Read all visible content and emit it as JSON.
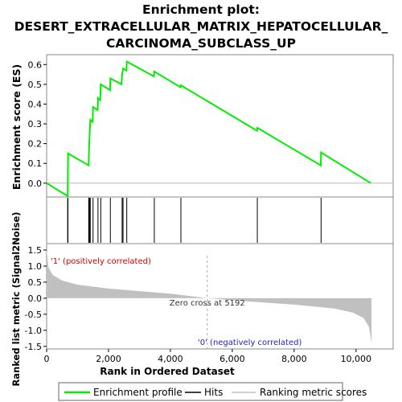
{
  "chart_data": {
    "type": "line",
    "title_lines": [
      "Enrichment plot:",
      "DESERT_EXTRACELLULAR_MATRIX_HEPATOCELLULAR_",
      "CARCINOMA_SUBCLASS_UP"
    ],
    "es_panel": {
      "ylabel": "Enrichment score (ES)",
      "ylim": [
        -0.07,
        0.65
      ],
      "yticks": [
        0.0,
        0.1,
        0.2,
        0.3,
        0.4,
        0.5,
        0.6
      ],
      "ytick_labels": [
        "0.0",
        "0.1",
        "0.2",
        "0.3",
        "0.4",
        "0.5",
        "0.6"
      ],
      "line_color": "#00ee00",
      "profile": [
        [
          0,
          0.0
        ],
        [
          680,
          -0.065
        ],
        [
          690,
          0.15
        ],
        [
          1360,
          0.09
        ],
        [
          1370,
          0.17
        ],
        [
          1390,
          0.25
        ],
        [
          1410,
          0.32
        ],
        [
          1490,
          0.31
        ],
        [
          1500,
          0.385
        ],
        [
          1650,
          0.37
        ],
        [
          1660,
          0.43
        ],
        [
          1730,
          0.42
        ],
        [
          1750,
          0.5
        ],
        [
          2050,
          0.47
        ],
        [
          2060,
          0.53
        ],
        [
          2420,
          0.5
        ],
        [
          2440,
          0.55
        ],
        [
          2470,
          0.58
        ],
        [
          2580,
          0.57
        ],
        [
          2590,
          0.615
        ],
        [
          3470,
          0.54
        ],
        [
          3480,
          0.565
        ],
        [
          4330,
          0.485
        ],
        [
          4340,
          0.495
        ],
        [
          6800,
          0.265
        ],
        [
          6810,
          0.28
        ],
        [
          8860,
          0.09
        ],
        [
          8870,
          0.155
        ],
        [
          10480,
          0.0
        ]
      ]
    },
    "hits": {
      "positions": [
        680,
        690,
        1360,
        1370,
        1390,
        1410,
        1500,
        1660,
        1750,
        2060,
        2440,
        2470,
        2590,
        3480,
        4340,
        6810,
        8870
      ]
    },
    "color_bar": {
      "label_pos": "'1' (positively correlated)",
      "label_neg": "'0' (negatively correlated)",
      "pos_color": "#ee0000",
      "neg_color": "#0000dd"
    },
    "metric_panel": {
      "ylabel": "Ranked list metric (Signal2Noise)",
      "ylim": [
        -1.58,
        1.7
      ],
      "yticks": [
        -1.5,
        -1.0,
        -0.5,
        0.0,
        0.5,
        1.0,
        1.5
      ],
      "ytick_labels": [
        "-1.5",
        "-1.0",
        "-0.5",
        "0.0",
        "0.5",
        "1.0",
        "1.5"
      ],
      "zero_cross_label": "Zero cross at 5192",
      "zero_cross": 5192,
      "n": 10500,
      "curve": [
        [
          0,
          1.55
        ],
        [
          60,
          0.95
        ],
        [
          200,
          0.72
        ],
        [
          500,
          0.55
        ],
        [
          1000,
          0.42
        ],
        [
          2000,
          0.3
        ],
        [
          3000,
          0.22
        ],
        [
          4000,
          0.14
        ],
        [
          5192,
          0.0
        ],
        [
          6500,
          -0.1
        ],
        [
          8000,
          -0.2
        ],
        [
          9300,
          -0.32
        ],
        [
          9900,
          -0.45
        ],
        [
          10250,
          -0.62
        ],
        [
          10420,
          -0.9
        ],
        [
          10500,
          -1.4
        ]
      ],
      "fill_color": "#c0c0c0"
    },
    "xaxis": {
      "xlabel": "Rank in Ordered Dataset",
      "xlim": [
        0,
        11200
      ],
      "xticks": [
        0,
        2000,
        4000,
        6000,
        8000,
        10000
      ],
      "xtick_labels": [
        "0",
        "2,000",
        "4,000",
        "6,000",
        "8,000",
        "10,000"
      ]
    },
    "legend": [
      {
        "label": "Enrichment profile",
        "color": "#00ee00"
      },
      {
        "label": "Hits",
        "color": "#000000"
      },
      {
        "label": "Ranking metric scores",
        "color": "#c0c0c0"
      }
    ]
  }
}
